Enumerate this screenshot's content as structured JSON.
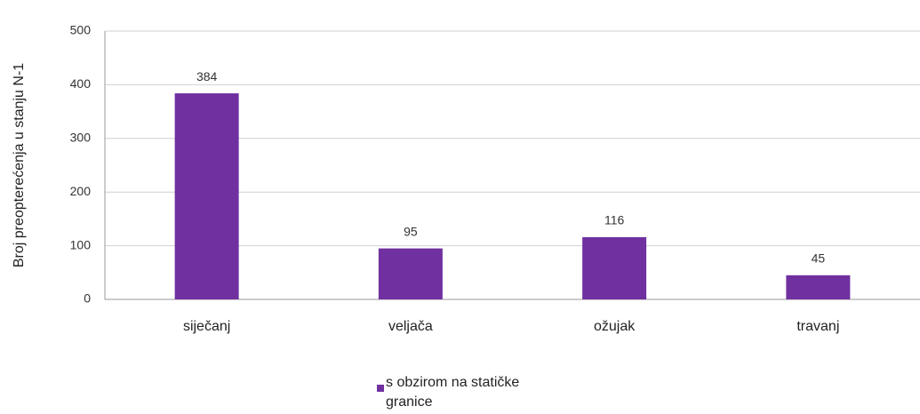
{
  "chart_data": {
    "type": "bar",
    "y_label": "Broj preopterećenja u stanju N-1",
    "categories": [
      "siječanj",
      "veljača",
      "ožujak",
      "travanj"
    ],
    "series": [
      {
        "name": "s obzirom na statičke granice",
        "color": "#7030a0",
        "values": [
          384,
          95,
          116,
          45
        ]
      }
    ],
    "ylim": [
      0,
      500
    ],
    "yticks": [
      0,
      100,
      200,
      300,
      400,
      500
    ],
    "grid": true,
    "data_labels": true,
    "legend": "bottom"
  }
}
